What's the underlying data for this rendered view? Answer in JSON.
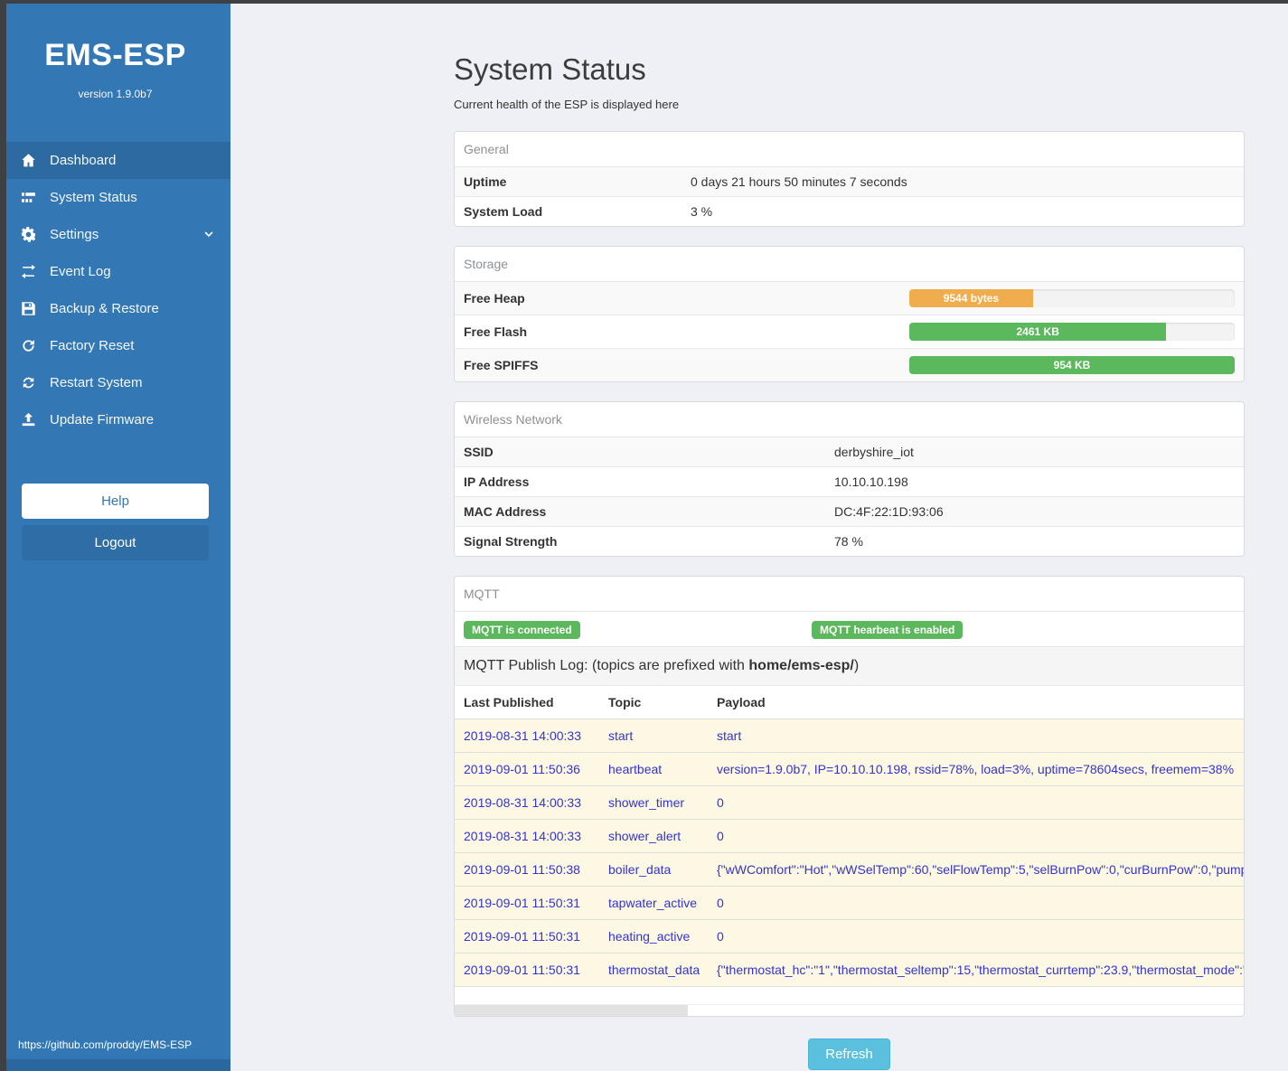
{
  "sidebar": {
    "brand": {
      "title": "EMS-ESP",
      "version": "version 1.9.0b7"
    },
    "nav": [
      {
        "label": "Dashboard",
        "icon": "home-icon",
        "active": true,
        "chevron": false
      },
      {
        "label": "System Status",
        "icon": "status-icon",
        "active": false,
        "chevron": false
      },
      {
        "label": "Settings",
        "icon": "gear-icon",
        "active": false,
        "chevron": true
      },
      {
        "label": "Event Log",
        "icon": "exchange-icon",
        "active": false,
        "chevron": false
      },
      {
        "label": "Backup & Restore",
        "icon": "save-icon",
        "active": false,
        "chevron": false
      },
      {
        "label": "Factory Reset",
        "icon": "redo-icon",
        "active": false,
        "chevron": false
      },
      {
        "label": "Restart System",
        "icon": "sync-icon",
        "active": false,
        "chevron": false
      },
      {
        "label": "Update Firmware",
        "icon": "upload-icon",
        "active": false,
        "chevron": false
      }
    ],
    "help_label": "Help",
    "logout_label": "Logout",
    "footer_link": "https://github.com/proddy/EMS-ESP"
  },
  "page": {
    "title": "System Status",
    "subtitle": "Current health of the ESP is displayed here"
  },
  "panels": {
    "general": {
      "title": "General",
      "rows": [
        {
          "label": "Uptime",
          "value": "0 days 21 hours 50 minutes 7 seconds"
        },
        {
          "label": "System Load",
          "value": "3 %"
        }
      ]
    },
    "storage": {
      "title": "Storage",
      "bars": [
        {
          "label": "Free Heap",
          "value": "9544 bytes",
          "percent": 38,
          "color": "#f0ad4e"
        },
        {
          "label": "Free Flash",
          "value": "2461 KB",
          "percent": 79,
          "color": "#5cb85c"
        },
        {
          "label": "Free SPIFFS",
          "value": "954 KB",
          "percent": 100,
          "color": "#5cb85c"
        }
      ]
    },
    "wireless": {
      "title": "Wireless Network",
      "rows": [
        {
          "label": "SSID",
          "value": "derbyshire_iot"
        },
        {
          "label": "IP Address",
          "value": "10.10.10.198"
        },
        {
          "label": "MAC Address",
          "value": "DC:4F:22:1D:93:06"
        },
        {
          "label": "Signal Strength",
          "value": "78 %"
        }
      ]
    },
    "mqtt": {
      "title": "MQTT",
      "badges": [
        "MQTT is connected",
        "MQTT hearbeat is enabled"
      ],
      "log_label_prefix": "MQTT Publish Log: (topics are prefixed with ",
      "log_label_bold": "home/ems-esp/",
      "log_label_suffix": ")",
      "columns": [
        "Last Published",
        "Topic",
        "Payload"
      ],
      "rows": [
        {
          "time": "2019-08-31 14:00:33",
          "topic": "start",
          "payload": "start"
        },
        {
          "time": "2019-09-01 11:50:36",
          "topic": "heartbeat",
          "payload": "version=1.9.0b7, IP=10.10.10.198, rssid=78%, load=3%, uptime=78604secs, freemem=38%"
        },
        {
          "time": "2019-08-31 14:00:33",
          "topic": "shower_timer",
          "payload": "0"
        },
        {
          "time": "2019-08-31 14:00:33",
          "topic": "shower_alert",
          "payload": "0"
        },
        {
          "time": "2019-09-01 11:50:38",
          "topic": "boiler_data",
          "payload": "{\"wWComfort\":\"Hot\",\"wWSelTemp\":60,\"selFlowTemp\":5,\"selBurnPow\":0,\"curBurnPow\":0,\"pump"
        },
        {
          "time": "2019-09-01 11:50:31",
          "topic": "tapwater_active",
          "payload": "0"
        },
        {
          "time": "2019-09-01 11:50:31",
          "topic": "heating_active",
          "payload": "0"
        },
        {
          "time": "2019-09-01 11:50:31",
          "topic": "thermostat_data",
          "payload": "{\"thermostat_hc\":\"1\",\"thermostat_seltemp\":15,\"thermostat_currtemp\":23.9,\"thermostat_mode\":\""
        }
      ]
    }
  },
  "refresh_label": "Refresh",
  "colors": {
    "sidebar": "#3377b5",
    "sidebar_active": "#2c6aa1",
    "badge_green": "#5cb85c",
    "bar_orange": "#f0ad4e",
    "bar_green": "#5cb85c",
    "log_row_bg": "#fcf8e3",
    "log_text": "#3434cd",
    "refresh_blue": "#5bc0de"
  }
}
